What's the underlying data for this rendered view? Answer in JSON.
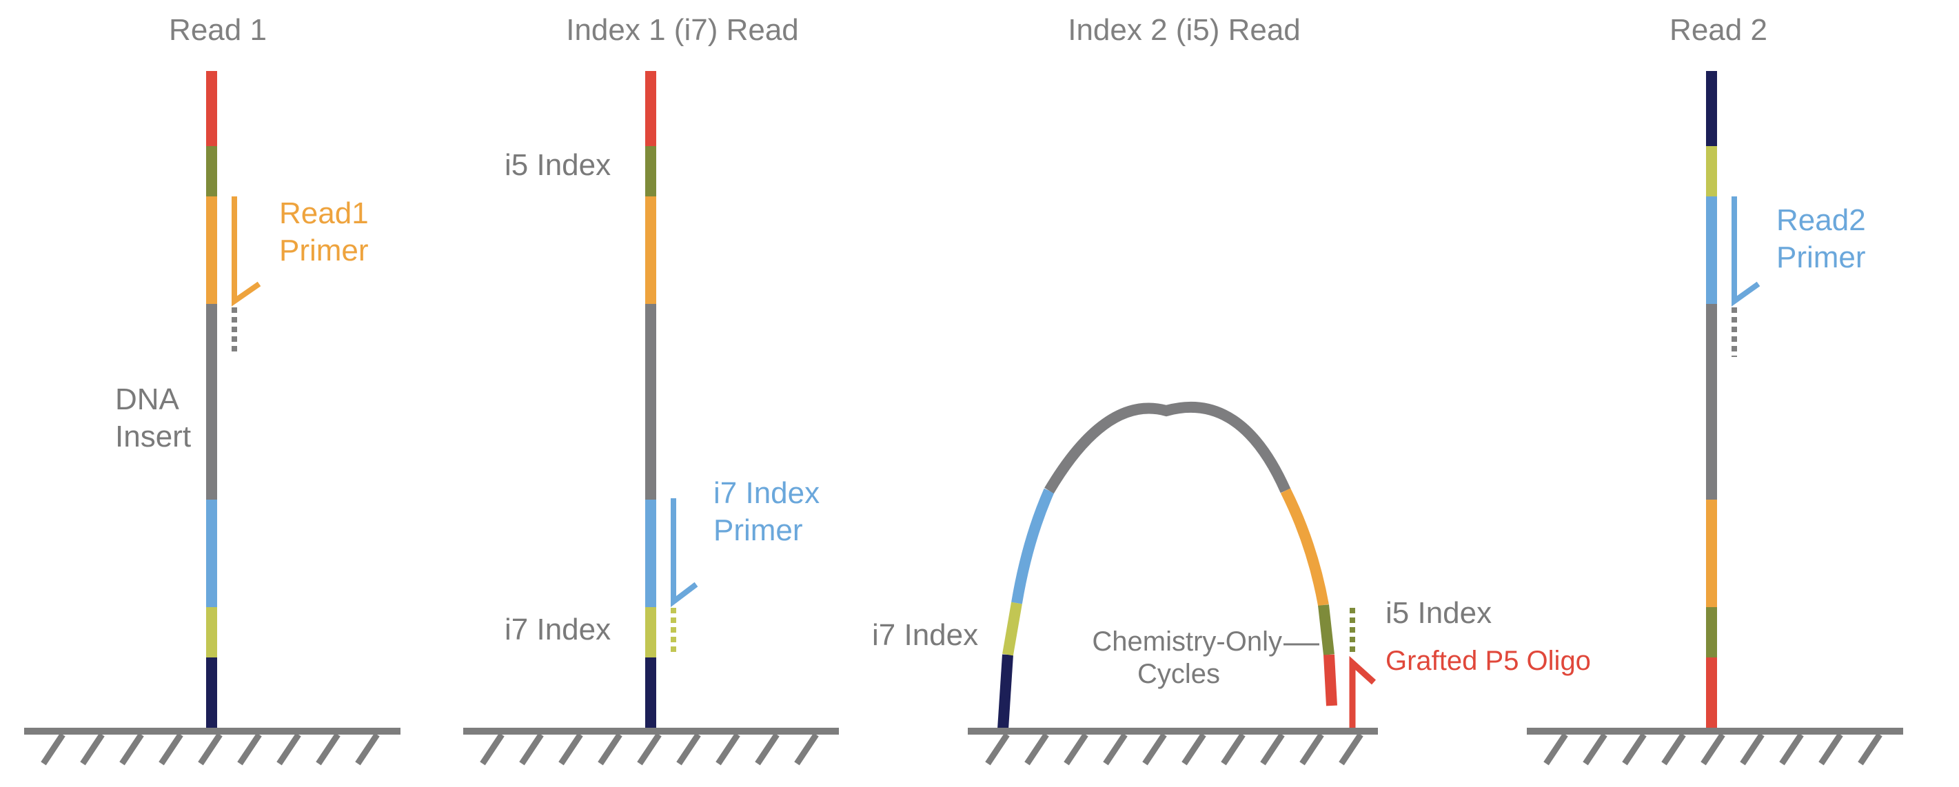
{
  "panels": {
    "read1": {
      "title": "Read 1",
      "primer_label_line1": "Read1",
      "primer_label_line2": "Primer",
      "insert_label_line1": "DNA",
      "insert_label_line2": "Insert"
    },
    "index1": {
      "title": "Index 1 (i7) Read",
      "i5_label": "i5 Index",
      "i7_label": "i7 Index",
      "primer_label_line1": "i7 Index",
      "primer_label_line2": "Primer"
    },
    "index2": {
      "title": "Index 2 (i5) Read",
      "i7_label": "i7 Index",
      "chem_label_line1": "Chemistry-Only",
      "chem_label_line2": "Cycles",
      "i5_label": "i5 Index",
      "oligo_label": "Grafted P5 Oligo"
    },
    "read2": {
      "title": "Read 2",
      "primer_label_line1": "Read2",
      "primer_label_line2": "Primer"
    }
  },
  "colors": {
    "title_gray": "#808080",
    "label_gray": "#7a7a7a",
    "surface": "#7d7d7d",
    "red": "#e0473a",
    "olive": "#7e8b3a",
    "orange": "#eea33d",
    "insert_gray": "#7d7d7f",
    "blue": "#6aa7db",
    "lime": "#c2c653",
    "navy": "#1c1f57"
  }
}
